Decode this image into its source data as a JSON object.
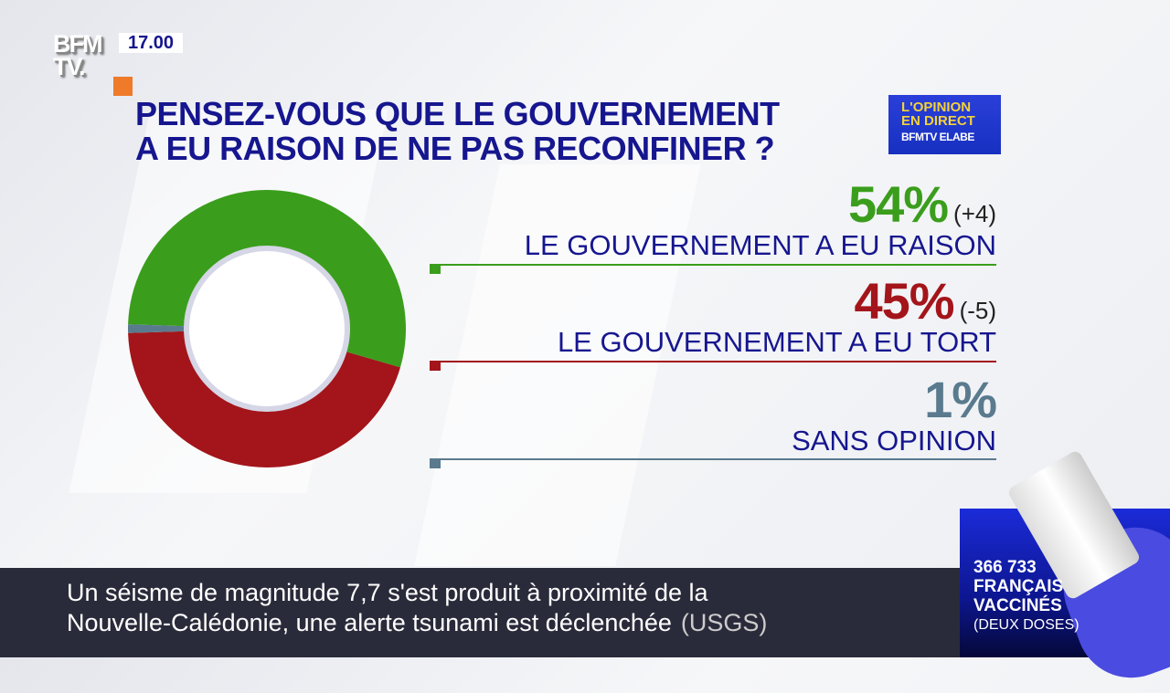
{
  "channel": {
    "logo": "BFM TV.",
    "time": "17.00",
    "accent": "#ee7a2a"
  },
  "badge": {
    "line1": "L'OPINION",
    "line2": "EN DIRECT",
    "line3": "BFMTV ELABE"
  },
  "question": [
    "PENSEZ-VOUS QUE LE GOUVERNEMENT",
    "A EU RAISON DE NE PAS RECONFINER ?"
  ],
  "chart_data": {
    "type": "pie",
    "donut": true,
    "categories": [
      "LE GOUVERNEMENT A EU RAISON",
      "LE GOUVERNEMENT A EU TORT",
      "SANS OPINION"
    ],
    "values": [
      54,
      45,
      1
    ],
    "value_labels": [
      "54%",
      "45%",
      "1%"
    ],
    "changes": [
      "(+4)",
      "(-5)",
      ""
    ],
    "colors": [
      "#3a9e1c",
      "#a3151a",
      "#5a7a8e"
    ]
  },
  "ticker": {
    "line1": "Un séisme de magnitude 7,7 s'est produit à proximité de la",
    "line2": "Nouvelle-Calédonie, une alerte tsunami est déclenchée",
    "source": "(USGS)"
  },
  "vaccines": {
    "count": "366 733",
    "line2": "FRANÇAIS",
    "line3": "VACCINÉS",
    "line4": "(DEUX DOSES)"
  }
}
